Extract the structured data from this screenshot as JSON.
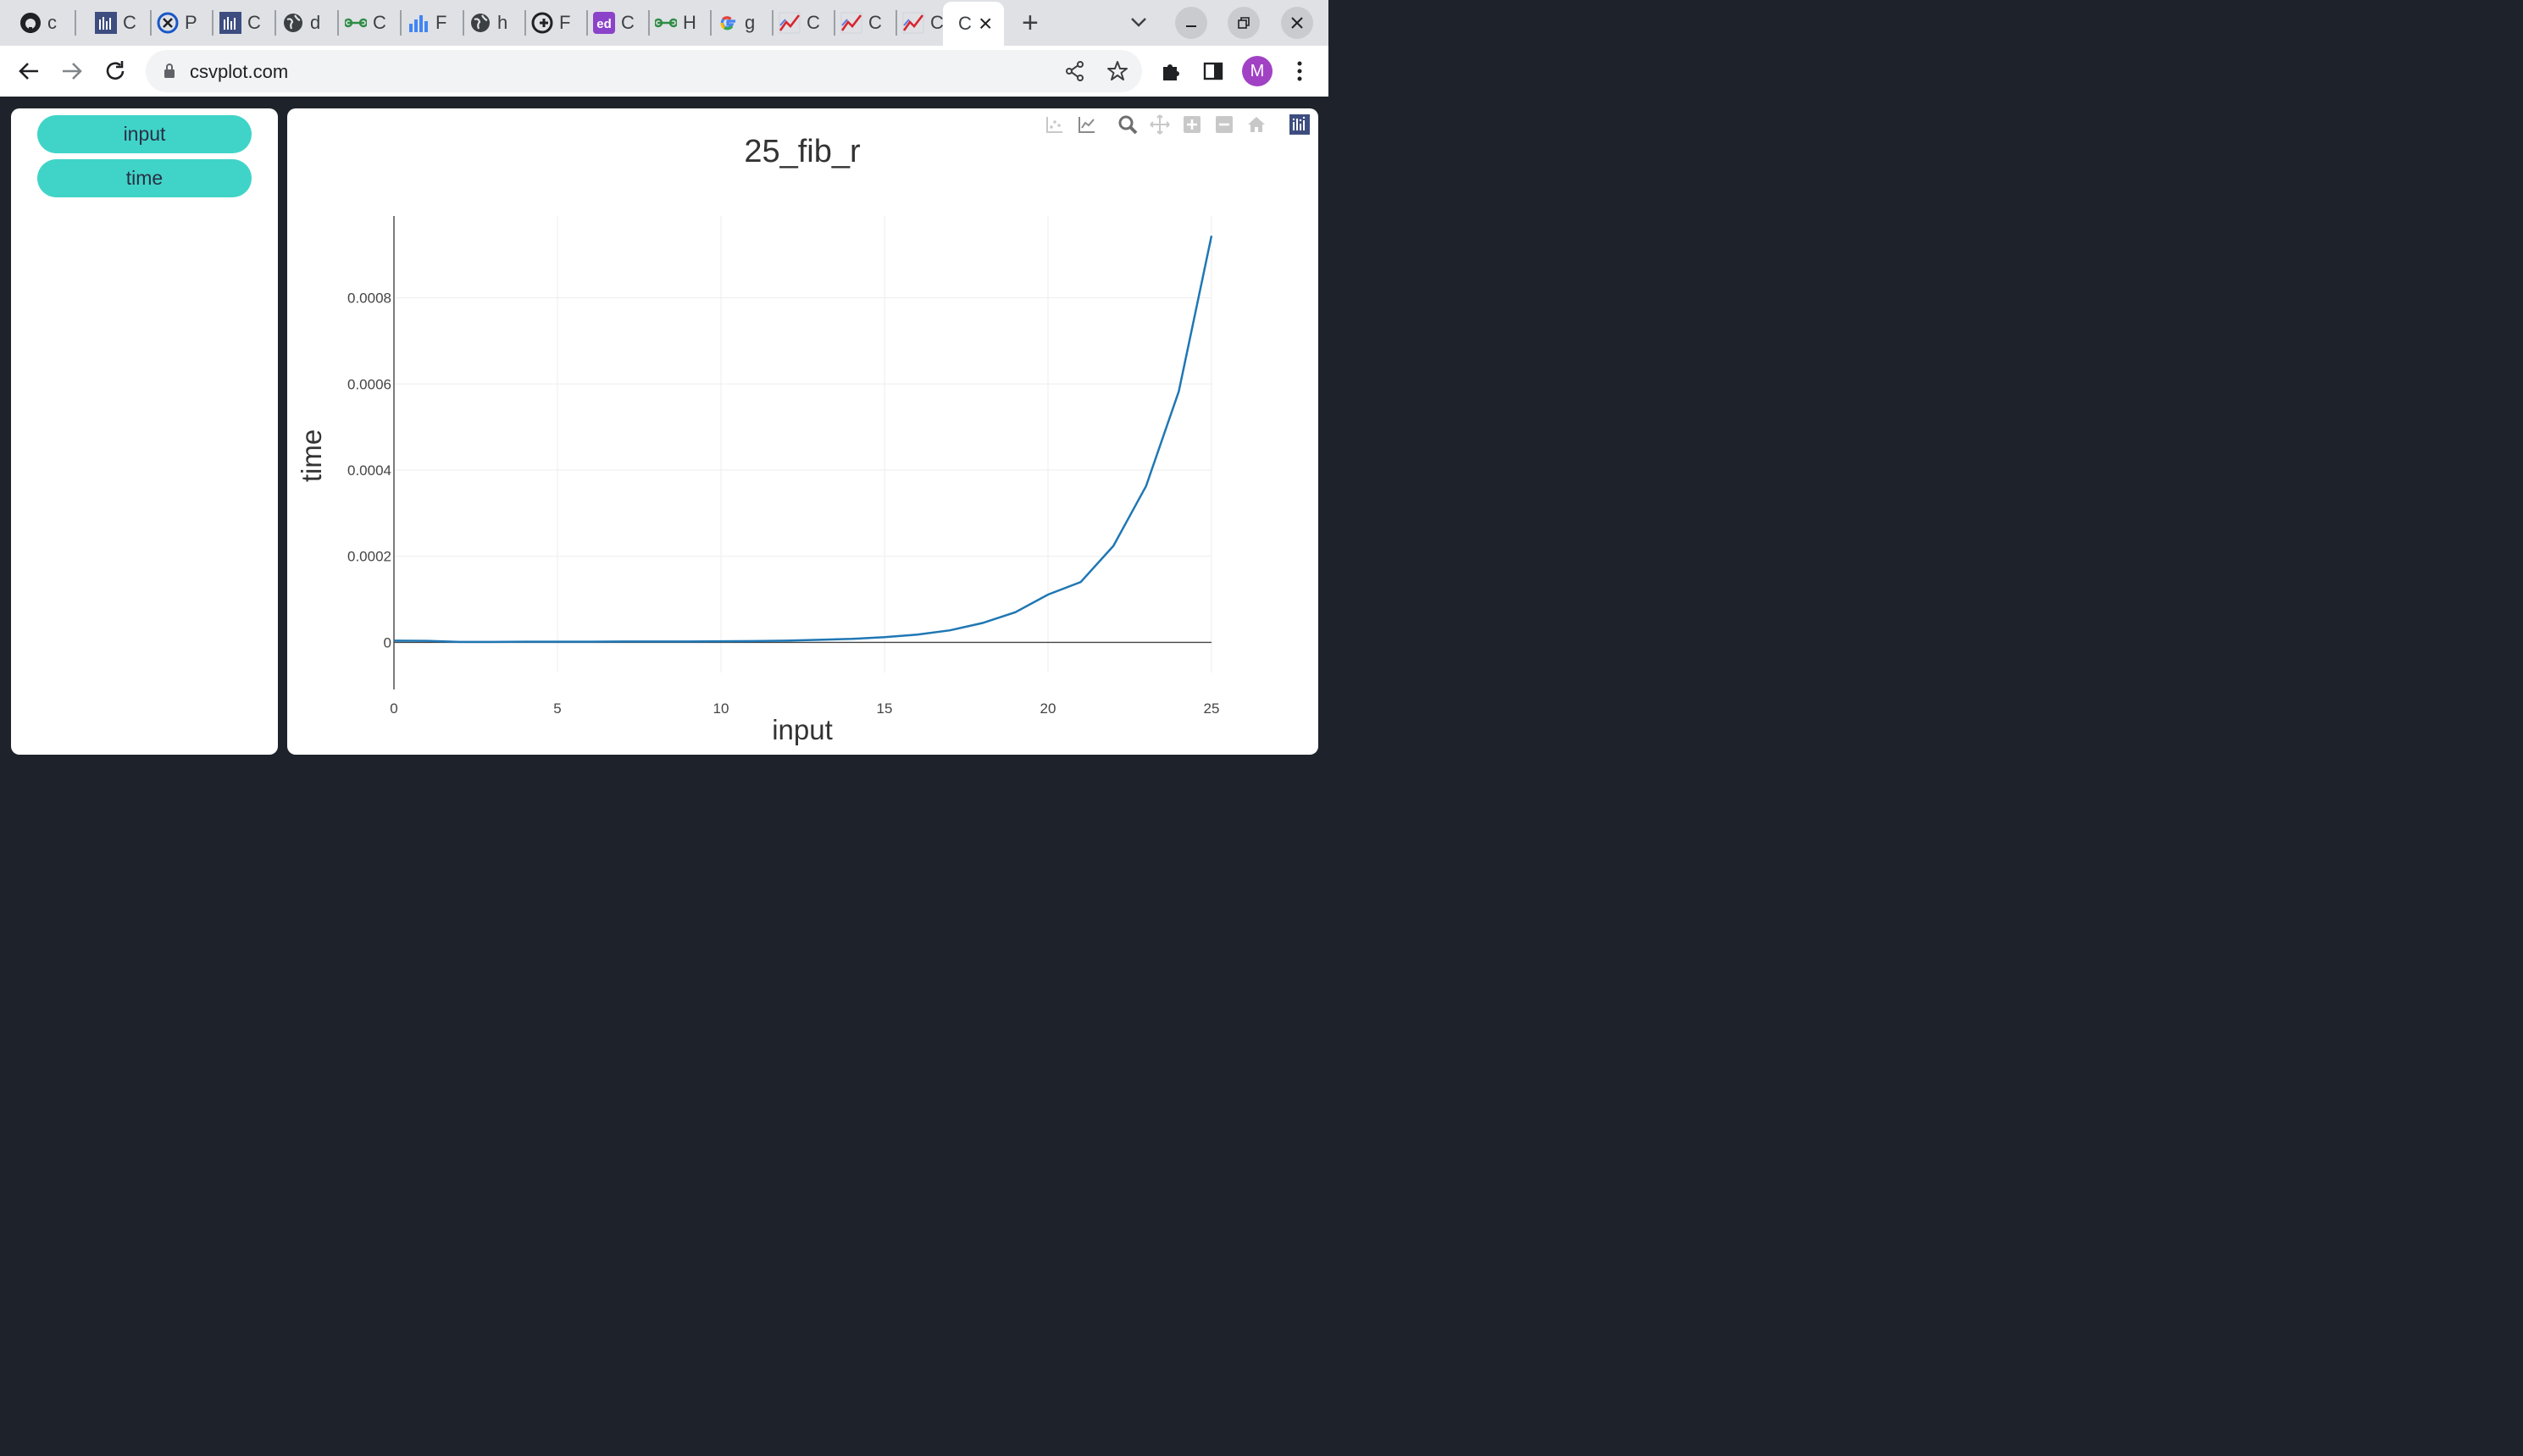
{
  "browser": {
    "tabs": [
      {
        "title": "c",
        "icon": "github-icon"
      },
      {
        "title": "C",
        "icon": "csv-plot-icon"
      },
      {
        "title": "P",
        "icon": "site-icon"
      },
      {
        "title": "C",
        "icon": "csv-plot-icon"
      },
      {
        "title": "d",
        "icon": "globe-icon"
      },
      {
        "title": "C",
        "icon": "geeksforgeeks-icon"
      },
      {
        "title": "F",
        "icon": "bar-chart-icon"
      },
      {
        "title": "h",
        "icon": "globe-icon"
      },
      {
        "title": "F",
        "icon": "cpp-icon"
      },
      {
        "title": "C",
        "icon": "edpuzzle-icon"
      },
      {
        "title": "H",
        "icon": "geeksforgeeks-icon"
      },
      {
        "title": "g",
        "icon": "google-icon"
      },
      {
        "title": "C",
        "icon": "line-chart-icon"
      },
      {
        "title": "C",
        "icon": "line-chart-icon"
      },
      {
        "title": "C",
        "icon": "line-chart-icon"
      }
    ],
    "active_tab": {
      "title": "C"
    },
    "url": "csvplot.com",
    "avatar_letter": "M",
    "colors": {
      "avatar": "#a142c4",
      "accent": "#40d4c8"
    }
  },
  "sidebar": {
    "columns": [
      "input",
      "time"
    ]
  },
  "chart_data": {
    "type": "line",
    "title": "25_fib_r",
    "xlabel": "input",
    "ylabel": "time",
    "xlim": [
      0,
      25
    ],
    "ylim": [
      -7e-05,
      0.00099
    ],
    "x_ticks": [
      0,
      5,
      10,
      15,
      20,
      25
    ],
    "y_ticks": [
      0,
      0.0002,
      0.0004,
      0.0006,
      0.0008
    ],
    "y_tick_labels": [
      "0",
      "0.0002",
      "0.0004",
      "0.0006",
      "0.0008"
    ],
    "grid": true,
    "legend": "none",
    "series": [
      {
        "color": "#1f77b4",
        "x": [
          0,
          1,
          2,
          3,
          4,
          5,
          6,
          7,
          8,
          9,
          10,
          11,
          12,
          13,
          14,
          15,
          16,
          17,
          18,
          19,
          20,
          21,
          22,
          23,
          24,
          25
        ],
        "y": [
          4e-06,
          3.5e-06,
          1e-06,
          1e-06,
          1.5e-06,
          1.5e-06,
          1.5e-06,
          2e-06,
          2e-06,
          2e-06,
          2.5e-06,
          3e-06,
          4e-06,
          6e-06,
          8e-06,
          1.2e-05,
          1.8e-05,
          2.8e-05,
          4.5e-05,
          7e-05,
          0.000111,
          0.00014,
          0.000224,
          0.000363,
          0.000583,
          0.000944
        ]
      }
    ]
  }
}
